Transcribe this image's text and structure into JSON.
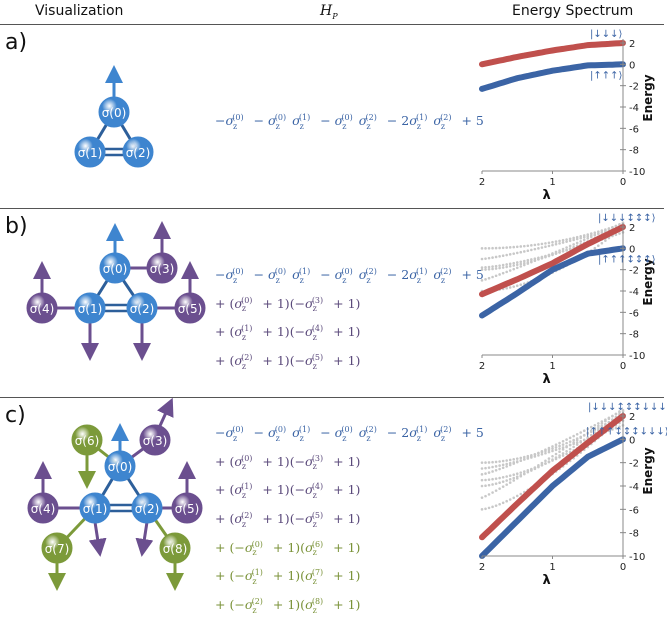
{
  "headers": {
    "visualization": "Visualization",
    "hp": "H",
    "hp_sub": "P",
    "spectrum": "Energy Spectrum"
  },
  "panels": [
    {
      "label": "a)",
      "ket_top": "|↓↓↓⟩",
      "ket_bottom": "|↑↑↑⟩",
      "formula_lines": [
        "−σz(0) − σz(0)σz(1) − σz(0)σz(2) − 2σz(1)σz(2) + 5"
      ]
    },
    {
      "label": "b)",
      "ket_top": "|↓↓↓↕↕↕⟩",
      "ket_bottom": "|↑↑↑↕↕↕⟩",
      "formula_lines": [
        "−σz(0) − σz(0)σz(1) − σz(0)σz(2) − 2σz(1)σz(2) + 5",
        "+ (σz(0) + 1)(−σz(3) + 1)",
        "+ (σz(1) + 1)(−σz(4) + 1)",
        "+ (σz(2) + 1)(−σz(5) + 1)"
      ]
    },
    {
      "label": "c)",
      "ket_top": "|↓↓↓↕↕↕↓↓↓⟩",
      "ket_bottom": "|↑↑↑↕↕↕↓↓↓⟩",
      "formula_lines": [
        "−σz(0) − σz(0)σz(1) − σz(0)σz(2) − 2σz(1)σz(2) + 5",
        "+ (σz(0) + 1)(−σz(3) + 1)",
        "+ (σz(1) + 1)(−σz(4) + 1)",
        "+ (σz(2) + 1)(−σz(5) + 1)",
        "+ (−σz(0) + 1)(σz(6) + 1)",
        "+ (−σz(1) + 1)(σz(7) + 1)",
        "+ (−σz(2) + 1)(σz(8) + 1)"
      ]
    }
  ],
  "nodes": {
    "s0": "σ(0)",
    "s1": "σ(1)",
    "s2": "σ(2)",
    "s3": "σ(3)",
    "s4": "σ(4)",
    "s5": "σ(5)",
    "s6": "σ(6)",
    "s7": "σ(7)",
    "s8": "σ(8)"
  },
  "chart_data": [
    {
      "type": "line",
      "panel": "a)",
      "xlabel": "λ",
      "ylabel": "Energy",
      "xlim": [
        2,
        0
      ],
      "ylim": [
        -10,
        2
      ],
      "xticks": [
        2,
        1,
        0
      ],
      "yticks": [
        2,
        0,
        -2,
        -4,
        -6,
        -8,
        -10
      ],
      "series": [
        {
          "color": "#c0504d",
          "x": [
            2,
            1.5,
            1,
            0.5,
            0
          ],
          "y": [
            0,
            0.7,
            1.3,
            1.8,
            2
          ]
        },
        {
          "color": "#3b64a5",
          "x": [
            2,
            1.5,
            1,
            0.5,
            0
          ],
          "y": [
            -2.3,
            -1.3,
            -0.6,
            -0.1,
            0
          ]
        }
      ]
    },
    {
      "type": "line",
      "panel": "b)",
      "xlabel": "λ",
      "ylabel": "Energy",
      "xlim": [
        2,
        0
      ],
      "ylim": [
        -10,
        2
      ],
      "xticks": [
        2,
        1,
        0
      ],
      "yticks": [
        2,
        0,
        -2,
        -4,
        -6,
        -8,
        -10
      ],
      "series": [
        {
          "color": "#c0504d",
          "x": [
            2,
            1.5,
            1,
            0.5,
            0
          ],
          "y": [
            -4.3,
            -2.9,
            -1.4,
            0.4,
            2
          ]
        },
        {
          "color": "#3b64a5",
          "x": [
            2,
            1.5,
            1,
            0.5,
            0
          ],
          "y": [
            -6.3,
            -4.2,
            -2.0,
            -0.5,
            0
          ]
        }
      ]
    },
    {
      "type": "line",
      "panel": "c)",
      "xlabel": "λ",
      "ylabel": "Energy",
      "xlim": [
        2,
        0
      ],
      "ylim": [
        -10,
        2
      ],
      "xticks": [
        2,
        1,
        0
      ],
      "yticks": [
        2,
        0,
        -2,
        -4,
        -6,
        -8,
        -10
      ],
      "series": [
        {
          "color": "#c0504d",
          "x": [
            2,
            1.5,
            1,
            0.5,
            0
          ],
          "y": [
            -8.4,
            -5.5,
            -2.7,
            -0.3,
            2
          ]
        },
        {
          "color": "#3b64a5",
          "x": [
            2,
            1.5,
            1,
            0.5,
            0
          ],
          "y": [
            -10,
            -7.0,
            -4.0,
            -1.5,
            0
          ]
        }
      ]
    }
  ],
  "colors": {
    "blue_node": "#3e85cf",
    "purple_node": "#6b4f8f",
    "green_node": "#7c9a3a",
    "gray_dots": "#c8c8c8"
  }
}
